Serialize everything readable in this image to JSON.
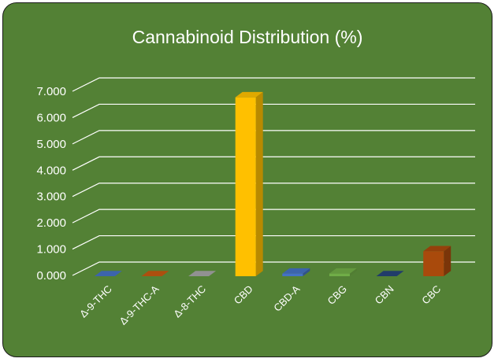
{
  "chart_data": {
    "type": "bar",
    "title": "Cannabinoid Distribution (%)",
    "categories": [
      "Δ-9-THC",
      "Δ-9-THC-A",
      "Δ-8-THC",
      "CBD",
      "CBD-A",
      "CBG",
      "CBN",
      "CBC"
    ],
    "values": [
      0.0,
      0.0,
      0.0,
      6.8,
      0.1,
      0.1,
      0.0,
      0.95
    ],
    "colors": [
      "#4472c4",
      "#c55a11",
      "#a5a5a5",
      "#ffc000",
      "#4472c4",
      "#70ad47",
      "#264478",
      "#a94a0c"
    ],
    "ylim": [
      0,
      7
    ],
    "yticks": [
      "0.000",
      "1.000",
      "2.000",
      "3.000",
      "4.000",
      "5.000",
      "6.000",
      "7.000"
    ],
    "grid": true,
    "style": "3d-column"
  },
  "colors": {
    "background": "#538135",
    "text": "#ffffff",
    "gridline": "#ffffff"
  }
}
